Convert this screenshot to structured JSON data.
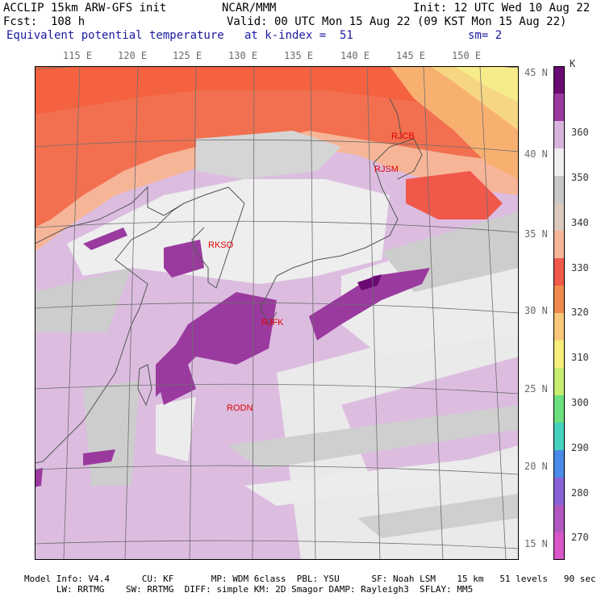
{
  "header": {
    "model": "ACCLIP 15km ARW-GFS init",
    "org": "NCAR/MMM",
    "init": "Init: 12 UTC Wed 10 Aug 22",
    "fcst": "Fcst:  108 h",
    "valid": "Valid: 00 UTC Mon 15 Aug 22 (09 KST Mon 15 Aug 22)",
    "field": "Equivalent potential temperature",
    "kindex": "at k-index =  51",
    "sm": "sm= 2"
  },
  "lon_ticks": [
    "115 E",
    "120 E",
    "125 E",
    "130 E",
    "135 E",
    "140 E",
    "145 E",
    "150 E"
  ],
  "lat_ticks": [
    "45 N",
    "40 N",
    "35 N",
    "30 N",
    "25 N",
    "20 N",
    "15 N"
  ],
  "stations": [
    {
      "id": "RJCB"
    },
    {
      "id": "RJSM"
    },
    {
      "id": "RKSO"
    },
    {
      "id": "RJFK"
    },
    {
      "id": "RODN"
    }
  ],
  "colorbar": {
    "unit": "K",
    "labels": [
      "360",
      "350",
      "340",
      "330",
      "320",
      "310",
      "300",
      "290",
      "280",
      "270"
    ],
    "colors": [
      "#6c0a74",
      "#9a3a9e",
      "#d8b4dc",
      "#efefef",
      "#c8c8c8",
      "#dcc9bd",
      "#f7b598",
      "#f0584a",
      "#f08a4c",
      "#fac878",
      "#f6ee7a",
      "#c8ec6e",
      "#6ce07e",
      "#46d0c0",
      "#4a8ae8",
      "#8a62d8",
      "#b258c0",
      "#d856c8"
    ],
    "color_names": [
      "dark-purple",
      "purple",
      "light-purple",
      "light-gray",
      "gray",
      "warm-gray",
      "salmon",
      "red",
      "orange",
      "light-orange",
      "yellow",
      "yellow-green",
      "green",
      "teal",
      "blue",
      "blue-violet",
      "violet",
      "magenta"
    ]
  },
  "footer": {
    "line1": "Model Info: V4.4      CU: KF       MP: WDM 6class  PBL: YSU      SF: Noah LSM    15 km   51 levels   90 sec",
    "line2": "      LW: RRTMG    SW: RRTMG  DIFF: simple KM: 2D Smagor DAMP: Rayleigh3  SFLAY: MM5"
  }
}
